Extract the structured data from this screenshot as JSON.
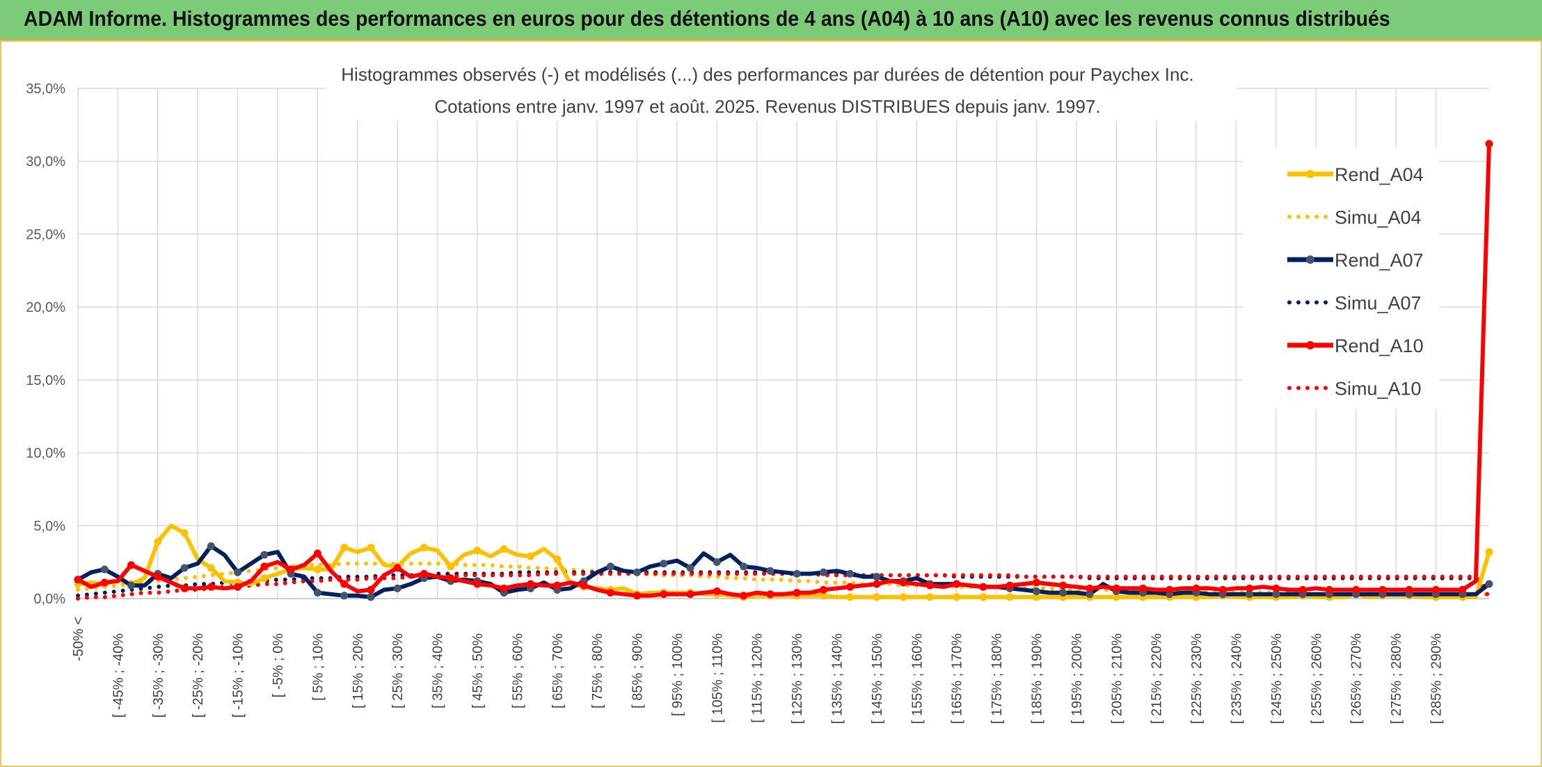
{
  "banner": {
    "title": "ADAM Informe. Histogrammes des performances en euros pour des détentions de 4 ans (A04) à 10 ans (A10) avec les revenus connus distribués"
  },
  "chart_data": {
    "type": "line",
    "title": "Histogrammes observés (-) et modélisés (...) des performances par durées de détention pour Paychex Inc.",
    "subtitle": "Cotations entre janv. 1997 et août. 2025. Revenus DISTRIBUES depuis janv. 1997.",
    "xlabel": "",
    "ylabel": "",
    "ylim": [
      0,
      35
    ],
    "yticks": [
      "0,0%",
      "5,0%",
      "10,0%",
      "15,0%",
      "20,0%",
      "25,0%",
      "30,0%",
      "35,0%"
    ],
    "grid": true,
    "legend_position": "right",
    "x_tick_labels": [
      "-50% <",
      "[ -45% ; -40%",
      "[ -35% ; -30%",
      "[ -25% ; -20%",
      "[ -15% ; -10%",
      "[ -5% ; 0%",
      "[ 5% ; 10%",
      "[ 15% ; 20%",
      "[ 25% ; 30%",
      "[ 35% ; 40%",
      "[ 45% ; 50%",
      "[ 55% ; 60%",
      "[ 65% ; 70%",
      "[ 75% ; 80%",
      "[ 85% ; 90%",
      "[ 95% ; 100%",
      "[ 105% ; 110%",
      "[ 115% ; 120%",
      "[ 125% ; 130%",
      "[ 135% ; 140%",
      "[ 145% ; 150%",
      "[ 155% ; 160%",
      "[ 165% ; 170%",
      "[ 175% ; 180%",
      "[ 185% ; 190%",
      "[ 195% ; 200%",
      "[ 205% ; 210%",
      "[ 215% ; 220%",
      "[ 225% ; 230%",
      "[ 235% ; 240%",
      "[ 245% ; 250%",
      "[ 255% ; 260%",
      "[ 265% ; 270%",
      "[ 275% ; 280%",
      "[ 285% ; 290%"
    ],
    "series": [
      {
        "name": "Rend_A04",
        "style": "solid",
        "color": "#ffc000",
        "values": [
          1.0,
          1.1,
          1.0,
          1.3,
          1.0,
          1.4,
          3.9,
          5.0,
          4.5,
          2.7,
          2.1,
          1.2,
          1.1,
          1.0,
          1.4,
          1.7,
          2.0,
          2.1,
          2.0,
          2.0,
          3.5,
          3.2,
          3.5,
          2.3,
          2.2,
          3.1,
          3.5,
          3.3,
          2.2,
          3.0,
          3.3,
          2.9,
          3.4,
          3.0,
          2.9,
          3.4,
          2.7,
          1.0,
          0.8,
          0.7,
          0.6,
          0.7,
          0.3,
          0.4,
          0.4,
          0.4,
          0.4,
          0.3,
          0.3,
          0.2,
          0.1,
          0.2,
          0.2,
          0.2,
          0.2,
          0.2,
          0.2,
          0.1,
          0.1,
          0.1,
          0.1,
          0.1,
          0.1,
          0.1,
          0.1,
          0.1,
          0.1,
          0.1,
          0.1,
          0.1,
          0.1,
          0.1,
          0.1,
          0.1,
          0.1,
          0.1,
          0.1,
          0.1,
          0.1,
          0.1,
          0.1,
          0.1,
          0.1,
          0.1,
          0.1,
          0.1,
          0.2,
          0.1,
          0.1,
          0.1,
          0.1,
          0.1,
          0.2,
          0.1,
          0.1,
          0.1,
          0.3,
          0.1,
          0.2,
          0.2,
          0.2,
          0.1,
          0.1,
          0.1,
          0.1,
          0.1,
          3.2
        ]
      },
      {
        "name": "Simu_A04",
        "style": "dotted",
        "color": "#ffc000",
        "values": [
          0.6,
          0.7,
          0.8,
          0.9,
          1.0,
          1.1,
          1.2,
          1.3,
          1.4,
          1.5,
          1.6,
          1.7,
          1.8,
          1.9,
          2.0,
          2.1,
          2.2,
          2.3,
          2.3,
          2.3,
          2.4,
          2.4,
          2.4,
          2.4,
          2.4,
          2.4,
          2.4,
          2.4,
          2.4,
          2.3,
          2.3,
          2.3,
          2.2,
          2.2,
          2.1,
          2.1,
          2.0,
          2.0,
          1.9,
          1.9,
          1.8,
          1.8,
          1.7,
          1.7,
          1.6,
          1.6,
          1.6,
          1.5,
          1.5,
          1.4,
          1.4,
          1.3,
          1.3,
          1.3,
          1.2,
          1.2,
          1.1,
          1.1,
          1.1,
          1.0,
          1.0,
          1.0,
          0.9,
          0.9,
          0.9,
          0.9,
          0.8,
          0.8,
          0.8,
          0.8,
          0.7,
          0.7,
          0.7,
          0.7,
          0.6,
          0.6,
          0.6,
          0.6,
          0.6,
          0.5,
          0.5,
          0.5,
          0.5,
          0.5,
          0.5,
          0.4,
          0.4,
          0.4,
          0.4,
          0.4,
          0.4,
          0.4,
          0.4,
          0.3,
          0.3,
          0.3,
          0.3,
          0.3,
          0.3,
          0.3,
          0.3,
          0.3,
          0.3,
          0.3,
          0.3,
          0.3,
          0.3
        ]
      },
      {
        "name": "Rend_A07",
        "style": "solid",
        "color": "#002060",
        "values": [
          1.3,
          1.8,
          2.0,
          1.5,
          0.9,
          0.9,
          1.7,
          1.4,
          2.1,
          2.4,
          3.6,
          3.0,
          1.8,
          2.4,
          3.0,
          3.2,
          1.7,
          1.5,
          0.4,
          0.3,
          0.2,
          0.2,
          0.1,
          0.6,
          0.7,
          1.0,
          1.4,
          1.5,
          1.2,
          1.3,
          1.2,
          1.0,
          0.4,
          0.6,
          0.7,
          1.1,
          0.6,
          0.7,
          1.2,
          1.8,
          2.2,
          1.9,
          1.8,
          2.2,
          2.4,
          2.6,
          2.1,
          3.1,
          2.5,
          3.0,
          2.2,
          2.1,
          1.9,
          1.8,
          1.7,
          1.7,
          1.8,
          1.9,
          1.7,
          1.5,
          1.5,
          1.2,
          1.2,
          1.4,
          1.0,
          1.0,
          1.0,
          0.9,
          0.8,
          0.8,
          0.7,
          0.6,
          0.5,
          0.4,
          0.4,
          0.4,
          0.3,
          1.0,
          0.5,
          0.4,
          0.4,
          0.4,
          0.3,
          0.4,
          0.4,
          0.3,
          0.3,
          0.3,
          0.3,
          0.3,
          0.3,
          0.3,
          0.3,
          0.3,
          0.3,
          0.3,
          0.3,
          0.3,
          0.3,
          0.3,
          0.3,
          0.3,
          0.3,
          0.3,
          0.3,
          0.3,
          1.0
        ]
      },
      {
        "name": "Simu_A07",
        "style": "dotted",
        "color": "#002060",
        "values": [
          0.2,
          0.3,
          0.4,
          0.5,
          0.6,
          0.7,
          0.8,
          0.9,
          0.9,
          1.0,
          1.0,
          1.1,
          1.1,
          1.2,
          1.2,
          1.3,
          1.3,
          1.4,
          1.4,
          1.4,
          1.5,
          1.5,
          1.5,
          1.6,
          1.6,
          1.6,
          1.6,
          1.7,
          1.7,
          1.7,
          1.7,
          1.7,
          1.7,
          1.8,
          1.8,
          1.8,
          1.8,
          1.8,
          1.8,
          1.8,
          1.8,
          1.8,
          1.8,
          1.8,
          1.8,
          1.8,
          1.8,
          1.8,
          1.8,
          1.8,
          1.8,
          1.8,
          1.7,
          1.7,
          1.7,
          1.7,
          1.7,
          1.7,
          1.7,
          1.6,
          1.6,
          1.6,
          1.6,
          1.6,
          1.6,
          1.6,
          1.5,
          1.5,
          1.5,
          1.5,
          1.5,
          1.5,
          1.5,
          1.5,
          1.5,
          1.5,
          1.4,
          1.4,
          1.4,
          1.4,
          1.4,
          1.4,
          1.4,
          1.4,
          1.4,
          1.4,
          1.4,
          1.4,
          1.4,
          1.4,
          1.4,
          1.4,
          1.4,
          1.4,
          1.4,
          1.4,
          1.4,
          1.4,
          1.4,
          1.4,
          1.4,
          1.4,
          1.4,
          1.4,
          1.4,
          1.4,
          0.6
        ]
      },
      {
        "name": "Rend_A10",
        "style": "solid",
        "color": "#ff0000",
        "values": [
          1.3,
          0.8,
          1.1,
          1.2,
          2.3,
          1.9,
          1.5,
          1.1,
          0.7,
          0.7,
          0.8,
          0.7,
          0.8,
          1.2,
          2.2,
          2.5,
          2.0,
          2.3,
          3.1,
          1.9,
          1.0,
          0.5,
          0.6,
          1.6,
          2.1,
          1.5,
          1.7,
          1.5,
          1.4,
          1.2,
          1.0,
          0.9,
          0.7,
          0.9,
          1.0,
          0.9,
          0.9,
          1.1,
          0.9,
          0.6,
          0.4,
          0.3,
          0.2,
          0.2,
          0.3,
          0.3,
          0.3,
          0.4,
          0.5,
          0.3,
          0.2,
          0.4,
          0.3,
          0.3,
          0.4,
          0.4,
          0.6,
          0.7,
          0.8,
          0.9,
          1.0,
          1.2,
          1.1,
          1.0,
          0.9,
          0.8,
          1.0,
          0.9,
          0.8,
          0.8,
          0.9,
          1.0,
          1.1,
          1.0,
          0.9,
          0.8,
          0.7,
          0.8,
          0.7,
          0.7,
          0.7,
          0.6,
          0.6,
          0.7,
          0.7,
          0.7,
          0.6,
          0.7,
          0.7,
          0.8,
          0.7,
          0.6,
          0.6,
          0.7,
          0.6,
          0.6,
          0.6,
          0.6,
          0.6,
          0.6,
          0.6,
          0.6,
          0.6,
          0.6,
          0.6,
          1.2,
          31.2
        ]
      },
      {
        "name": "Simu_A10",
        "style": "dotted",
        "color": "#ff0000",
        "values": [
          0.0,
          0.1,
          0.1,
          0.2,
          0.3,
          0.4,
          0.4,
          0.5,
          0.6,
          0.6,
          0.7,
          0.8,
          0.8,
          0.9,
          1.0,
          1.0,
          1.1,
          1.2,
          1.2,
          1.3,
          1.3,
          1.3,
          1.4,
          1.4,
          1.4,
          1.5,
          1.5,
          1.5,
          1.5,
          1.6,
          1.6,
          1.6,
          1.6,
          1.6,
          1.6,
          1.7,
          1.7,
          1.7,
          1.7,
          1.7,
          1.7,
          1.7,
          1.7,
          1.7,
          1.7,
          1.7,
          1.7,
          1.7,
          1.7,
          1.7,
          1.7,
          1.7,
          1.7,
          1.7,
          1.7,
          1.7,
          1.6,
          1.6,
          1.6,
          1.6,
          1.6,
          1.6,
          1.6,
          1.6,
          1.6,
          1.6,
          1.6,
          1.6,
          1.6,
          1.6,
          1.6,
          1.5,
          1.5,
          1.5,
          1.5,
          1.5,
          1.5,
          1.5,
          1.5,
          1.5,
          1.5,
          1.5,
          1.5,
          1.5,
          1.5,
          1.5,
          1.5,
          1.5,
          1.5,
          1.5,
          1.5,
          1.5,
          1.5,
          1.5,
          1.5,
          1.5,
          1.5,
          1.5,
          1.5,
          1.5,
          1.5,
          1.5,
          1.5,
          1.5,
          1.5,
          1.5,
          0.1
        ]
      }
    ]
  }
}
